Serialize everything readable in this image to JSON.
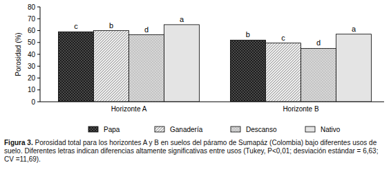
{
  "chart_data": {
    "type": "bar",
    "title": "Figura 3.",
    "subtitle": "Porosidad total para los horizontes A y B en suelos del páramo de Sumapáz (Colombia) bajo diferentes usos de suelo. Diferentes letras indican diferencias altamente significativas entre usos (Tukey, P<0,01; desviación estándar = 6,63; CV =11,69).",
    "y_label": "Porosidad (%)",
    "categories": [
      "Horizonte A",
      "Horizonte B"
    ],
    "series": [
      {
        "name": "Papa",
        "color": "#4a4a4a",
        "values": [
          59,
          52
        ],
        "annotations": [
          "c",
          "b"
        ]
      },
      {
        "name": "Ganadería",
        "color": "#ececec",
        "values": [
          60,
          49.5
        ],
        "annotations": [
          "b",
          "c"
        ]
      },
      {
        "name": "Descanso",
        "color": "#d6d6d6",
        "values": [
          56.5,
          45
        ],
        "annotations": [
          "d",
          "d"
        ]
      },
      {
        "name": "Nativo",
        "color": "#e4e4e4",
        "values": [
          65,
          57
        ],
        "annotations": [
          "a",
          "a"
        ]
      }
    ],
    "ylim": [
      0,
      80
    ],
    "yticks": [
      0,
      10,
      20,
      30,
      40,
      50,
      60,
      70,
      80
    ],
    "grid": false,
    "legend": "bottom"
  }
}
